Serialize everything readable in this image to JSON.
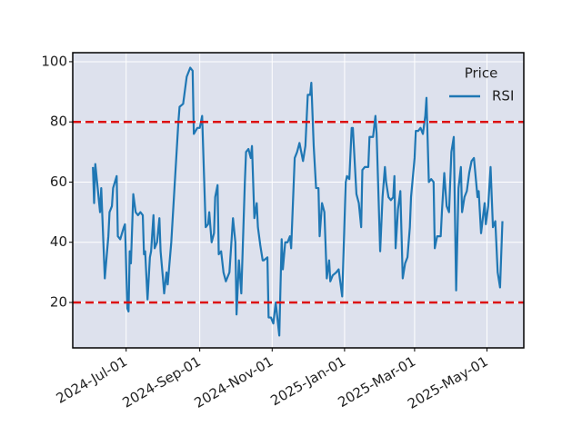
{
  "chart_data": {
    "type": "line",
    "x": [
      "2024-06-03",
      "2024-06-04",
      "2024-06-05",
      "2024-06-07",
      "2024-06-09",
      "2024-06-10",
      "2024-06-11",
      "2024-06-13",
      "2024-06-16",
      "2024-06-17",
      "2024-06-19",
      "2024-06-20",
      "2024-06-23",
      "2024-06-24",
      "2024-06-26",
      "2024-06-29",
      "2024-06-30",
      "2024-07-02",
      "2024-07-03",
      "2024-07-04",
      "2024-07-05",
      "2024-07-07",
      "2024-07-09",
      "2024-07-11",
      "2024-07-13",
      "2024-07-15",
      "2024-07-16",
      "2024-07-17",
      "2024-07-19",
      "2024-07-21",
      "2024-07-22",
      "2024-07-24",
      "2024-07-25",
      "2024-07-27",
      "2024-07-29",
      "2024-07-30",
      "2024-08-01",
      "2024-08-02",
      "2024-08-04",
      "2024-08-05",
      "2024-08-08",
      "2024-08-11",
      "2024-08-14",
      "2024-08-15",
      "2024-08-18",
      "2024-08-21",
      "2024-08-23",
      "2024-08-24",
      "2024-08-26",
      "2024-08-27",
      "2024-08-30",
      "2024-09-01",
      "2024-09-03",
      "2024-09-06",
      "2024-09-08",
      "2024-09-09",
      "2024-09-11",
      "2024-09-13",
      "2024-09-14",
      "2024-09-16",
      "2024-09-17",
      "2024-09-19",
      "2024-09-21",
      "2024-09-23",
      "2024-09-26",
      "2024-09-28",
      "2024-09-29",
      "2024-10-01",
      "2024-10-02",
      "2024-10-04",
      "2024-10-06",
      "2024-10-09",
      "2024-10-10",
      "2024-10-12",
      "2024-10-14",
      "2024-10-15",
      "2024-10-17",
      "2024-10-19",
      "2024-10-20",
      "2024-10-22",
      "2024-10-24",
      "2024-10-25",
      "2024-10-28",
      "2024-10-29",
      "2024-10-31",
      "2024-11-02",
      "2024-11-04",
      "2024-11-07",
      "2024-11-09",
      "2024-11-10",
      "2024-11-12",
      "2024-11-14",
      "2024-11-16",
      "2024-11-17",
      "2024-11-20",
      "2024-11-22",
      "2024-11-24",
      "2024-11-27",
      "2024-11-29",
      "2024-12-01",
      "2024-12-03",
      "2024-12-04",
      "2024-12-06",
      "2024-12-08",
      "2024-12-10",
      "2024-12-11",
      "2024-12-13",
      "2024-12-15",
      "2024-12-17",
      "2024-12-19",
      "2024-12-20",
      "2024-12-22",
      "2024-12-25",
      "2024-12-27",
      "2024-12-30",
      "2025-01-02",
      "2025-01-03",
      "2025-01-05",
      "2025-01-07",
      "2025-01-08",
      "2025-01-11",
      "2025-01-13",
      "2025-01-15",
      "2025-01-16",
      "2025-01-18",
      "2025-01-21",
      "2025-01-22",
      "2025-01-25",
      "2025-01-27",
      "2025-01-28",
      "2025-01-31",
      "2025-02-02",
      "2025-02-04",
      "2025-02-05",
      "2025-02-07",
      "2025-02-09",
      "2025-02-11",
      "2025-02-12",
      "2025-02-13",
      "2025-02-15",
      "2025-02-17",
      "2025-02-19",
      "2025-02-21",
      "2025-02-23",
      "2025-02-25",
      "2025-02-26",
      "2025-03-01",
      "2025-03-02",
      "2025-03-04",
      "2025-03-06",
      "2025-03-08",
      "2025-03-10",
      "2025-03-11",
      "2025-03-13",
      "2025-03-15",
      "2025-03-17",
      "2025-03-18",
      "2025-03-20",
      "2025-03-23",
      "2025-03-24",
      "2025-03-26",
      "2025-03-28",
      "2025-03-30",
      "2025-04-01",
      "2025-04-03",
      "2025-04-05",
      "2025-04-07",
      "2025-04-09",
      "2025-04-10",
      "2025-04-12",
      "2025-04-14",
      "2025-04-16",
      "2025-04-18",
      "2025-04-20",
      "2025-04-23",
      "2025-04-24",
      "2025-04-26",
      "2025-04-29",
      "2025-04-30",
      "2025-05-02",
      "2025-05-04",
      "2025-05-06",
      "2025-05-08",
      "2025-05-10",
      "2025-05-12",
      "2025-05-14"
    ],
    "series": [
      {
        "name": "RSI",
        "color": "#1f77b4",
        "values": [
          65,
          53,
          66,
          58,
          50,
          58,
          48,
          28,
          42,
          50,
          52,
          58,
          62,
          42,
          41,
          45,
          46,
          18,
          17,
          37,
          33,
          56,
          50,
          49,
          50,
          49,
          36,
          37,
          21,
          35,
          37,
          49,
          38,
          40,
          48,
          37,
          28,
          23,
          30,
          26,
          40,
          60,
          80,
          85,
          86,
          95,
          97,
          98,
          97,
          76,
          78,
          78,
          82,
          45,
          46,
          50,
          40,
          43,
          55,
          59,
          36,
          37,
          30,
          27,
          30,
          42,
          48,
          40,
          16,
          34,
          23,
          60,
          70,
          71,
          68,
          72,
          48,
          53,
          45,
          39,
          34,
          34,
          35,
          15,
          15,
          13,
          20,
          9,
          41,
          31,
          40,
          40,
          42,
          38,
          68,
          70,
          73,
          67,
          72,
          89,
          89,
          93,
          72,
          58,
          58,
          42,
          53,
          50,
          28,
          34,
          27,
          29,
          30,
          31,
          22,
          60,
          62,
          61,
          78,
          78,
          56,
          53,
          45,
          64,
          65,
          65,
          75,
          75,
          82,
          76,
          37,
          55,
          65,
          60,
          55,
          54,
          55,
          62,
          38,
          51,
          57,
          28,
          33,
          35,
          45,
          55,
          68,
          77,
          77,
          78,
          76,
          82,
          88,
          60,
          61,
          60,
          38,
          42,
          42,
          50,
          63,
          52,
          50,
          70,
          75,
          24,
          58,
          65,
          50,
          55,
          57,
          63,
          67,
          68,
          55,
          57,
          43,
          53,
          46,
          52,
          65,
          45,
          47,
          30,
          25,
          47
        ]
      }
    ],
    "xlim": [
      "2024-05-17",
      "2025-06-01"
    ],
    "xticks": [
      {
        "value": "2024-07-01",
        "label": "2024-Jul-01"
      },
      {
        "value": "2024-09-01",
        "label": "2024-Sep-01"
      },
      {
        "value": "2024-11-01",
        "label": "2024-Nov-01"
      },
      {
        "value": "2025-01-01",
        "label": "2025-Jan-01"
      },
      {
        "value": "2025-03-01",
        "label": "2025-Mar-01"
      },
      {
        "value": "2025-05-01",
        "label": "2025-May-01"
      }
    ],
    "ylim": [
      4.9,
      103
    ],
    "yticks": [
      20,
      40,
      60,
      80,
      100
    ],
    "hlines": [
      {
        "value": 80,
        "color": "#dd1111"
      },
      {
        "value": 20,
        "color": "#dd1111"
      }
    ],
    "grid": true,
    "legend": {
      "title": "Price",
      "position": "upper right"
    }
  }
}
